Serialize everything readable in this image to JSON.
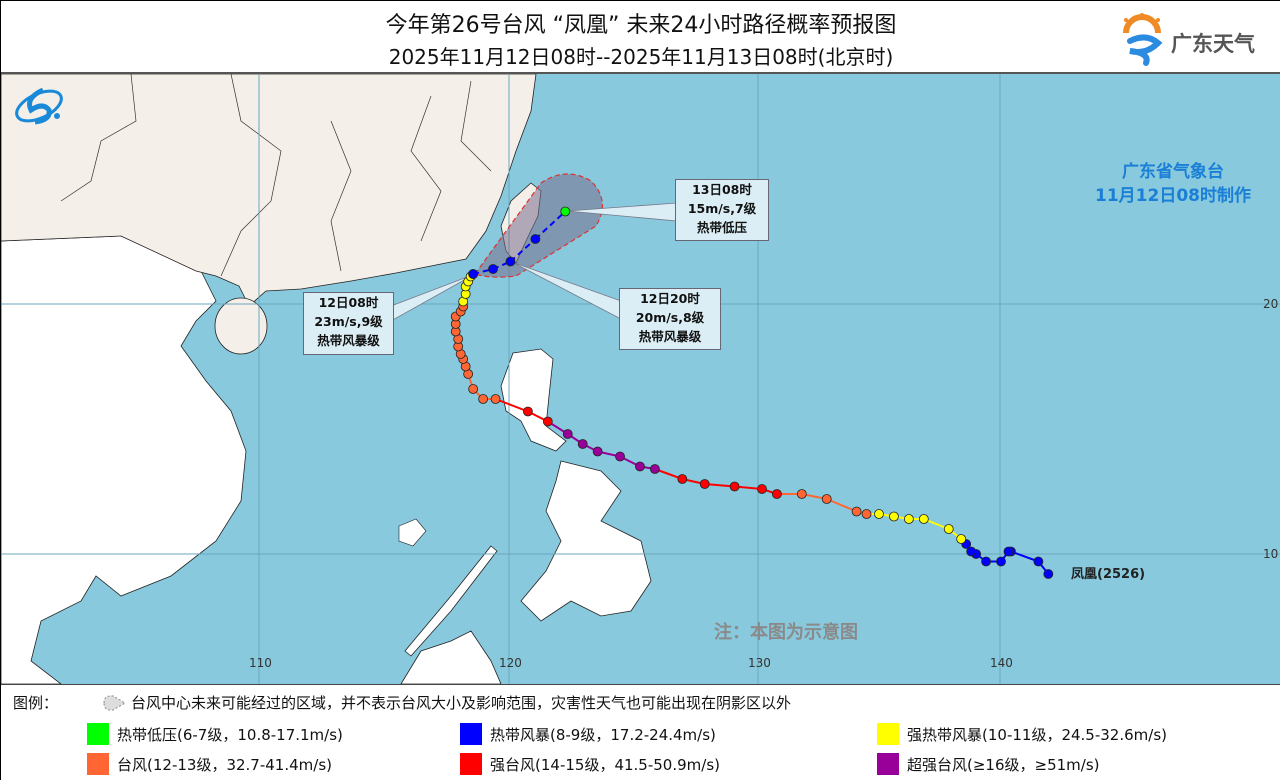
{
  "header": {
    "title": "今年第26号台风 “凤凰” 未来24小时路径概率预报图",
    "subtitle": "2025年11月12日08时--2025年11月13日08时(北京时)",
    "brand": "广东天气"
  },
  "maker": {
    "org": "广东省气象台",
    "time": "11月12日08时制作"
  },
  "map": {
    "grid": {
      "lon_labels": [
        "110",
        "120",
        "130",
        "140"
      ],
      "lat_labels": [
        "20",
        "10"
      ]
    },
    "note": "注：本图为示意图",
    "typhoon_label": "凤凰(2526)",
    "colors": {
      "sea": "#88c9dd",
      "china": "#f4efe9",
      "land": "#ffffff"
    },
    "track": [
      [
        141.7,
        9.2,
        "TS"
      ],
      [
        141.3,
        9.7,
        "TS"
      ],
      [
        140.2,
        10.1,
        "TS"
      ],
      [
        140.1,
        10.1,
        "TS"
      ],
      [
        139.8,
        9.7,
        "TS"
      ],
      [
        139.2,
        9.7,
        "TS"
      ],
      [
        138.8,
        10.0,
        "TS"
      ],
      [
        138.6,
        10.1,
        "TS"
      ],
      [
        138.4,
        10.4,
        "TS"
      ],
      [
        138.2,
        10.6,
        "STS"
      ],
      [
        137.7,
        11.0,
        "STS"
      ],
      [
        136.7,
        11.4,
        "STS"
      ],
      [
        136.1,
        11.4,
        "STS"
      ],
      [
        135.5,
        11.5,
        "STS"
      ],
      [
        134.9,
        11.6,
        "STS"
      ],
      [
        134.4,
        11.6,
        "TY"
      ],
      [
        134.0,
        11.7,
        "TY"
      ],
      [
        132.8,
        12.2,
        "TY"
      ],
      [
        131.8,
        12.4,
        "TY"
      ],
      [
        130.8,
        12.4,
        "STY"
      ],
      [
        130.2,
        12.6,
        "STY"
      ],
      [
        129.1,
        12.7,
        "STY"
      ],
      [
        127.9,
        12.8,
        "STY"
      ],
      [
        127.0,
        13.0,
        "STY"
      ],
      [
        125.9,
        13.4,
        "SuperTY"
      ],
      [
        125.3,
        13.5,
        "SuperTY"
      ],
      [
        124.5,
        13.9,
        "SuperTY"
      ],
      [
        123.6,
        14.1,
        "SuperTY"
      ],
      [
        123.0,
        14.4,
        "SuperTY"
      ],
      [
        122.4,
        14.8,
        "SuperTY"
      ],
      [
        121.6,
        15.3,
        "STY"
      ],
      [
        120.8,
        15.7,
        "STY"
      ],
      [
        119.5,
        16.2,
        "TY"
      ],
      [
        119.0,
        16.2,
        "TY"
      ],
      [
        118.6,
        16.6,
        "TY"
      ],
      [
        118.4,
        17.2,
        "TY"
      ],
      [
        118.3,
        17.5,
        "TY"
      ],
      [
        118.2,
        17.8,
        "TY"
      ],
      [
        118.1,
        18.0,
        "TY"
      ],
      [
        118.0,
        18.3,
        "TY"
      ],
      [
        118.0,
        18.6,
        "TY"
      ],
      [
        117.9,
        18.9,
        "TY"
      ],
      [
        117.9,
        19.2,
        "TY"
      ],
      [
        117.9,
        19.5,
        "TY"
      ],
      [
        118.1,
        19.7,
        "TY"
      ],
      [
        118.2,
        19.9,
        "TY"
      ],
      [
        118.2,
        20.1,
        "STS"
      ],
      [
        118.3,
        20.4,
        "STS"
      ],
      [
        118.3,
        20.7,
        "STS"
      ],
      [
        118.4,
        20.9,
        "STS"
      ],
      [
        118.5,
        21.1,
        "STS"
      ],
      [
        118.6,
        21.2,
        "TS"
      ]
    ],
    "forecast": [
      [
        118.6,
        21.2,
        "TS"
      ],
      [
        119.4,
        21.4,
        "TS"
      ],
      [
        120.1,
        21.7,
        "TS"
      ],
      [
        121.1,
        22.6,
        "TS"
      ],
      [
        122.3,
        23.7,
        "TD"
      ]
    ],
    "callouts": [
      {
        "time": "13日08时",
        "wind": "15m/s,7级",
        "level": "热带低压"
      },
      {
        "time": "12日08时",
        "wind": "23m/s,9级",
        "level": "热带风暴级"
      },
      {
        "time": "12日20时",
        "wind": "20m/s,8级",
        "level": "热带风暴级"
      }
    ]
  },
  "legend": {
    "title": "图例：",
    "cone_note": "台风中心未来可能经过的区域，并不表示台风大小及影响范围，灾害性天气也可能出现在阴影区以外",
    "items": [
      {
        "code": "TD",
        "label": "热带低压(6-7级，10.8-17.1m/s)",
        "color": "#00ff00"
      },
      {
        "code": "TS",
        "label": "热带风暴(8-9级，17.2-24.4m/s)",
        "color": "#0000ff"
      },
      {
        "code": "STS",
        "label": "强热带风暴(10-11级，24.5-32.6m/s)",
        "color": "#ffff00"
      },
      {
        "code": "TY",
        "label": "台风(12-13级，32.7-41.4m/s)",
        "color": "#ff6633"
      },
      {
        "code": "STY",
        "label": "强台风(14-15级，41.5-50.9m/s)",
        "color": "#ff0000"
      },
      {
        "code": "SuperTY",
        "label": "超强台风(≥16级，≥51m/s)",
        "color": "#990099"
      }
    ]
  }
}
